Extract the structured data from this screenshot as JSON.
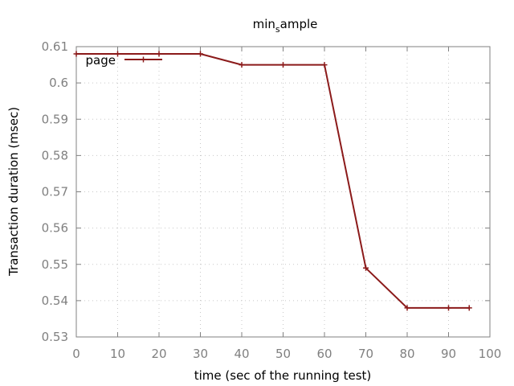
{
  "chart_data": {
    "type": "line",
    "title": "min",
    "title_subscript": "s",
    "title_rest": "ample",
    "xlabel": "time (sec of the running test)",
    "ylabel": "Transaction duration (msec)",
    "xlim": [
      0,
      100
    ],
    "ylim": [
      0.53,
      0.61
    ],
    "xticks": [
      0,
      10,
      20,
      30,
      40,
      50,
      60,
      70,
      80,
      90,
      100
    ],
    "yticks": [
      0.53,
      0.54,
      0.55,
      0.56,
      0.57,
      0.58,
      0.59,
      0.6,
      0.61
    ],
    "xtick_labels": [
      "0",
      "10",
      "20",
      "30",
      "40",
      "50",
      "60",
      "70",
      "80",
      "90",
      "100"
    ],
    "ytick_labels": [
      "0.53",
      "0.54",
      "0.55",
      "0.56",
      "0.57",
      "0.58",
      "0.59",
      "0.6",
      "0.61"
    ],
    "grid": true,
    "legend_position": "top-left",
    "series": [
      {
        "name": "page",
        "color": "#8b1a1a",
        "marker": "plus",
        "x": [
          0,
          10,
          20,
          30,
          40,
          50,
          60,
          70,
          80,
          90,
          95
        ],
        "y": [
          0.608,
          0.608,
          0.608,
          0.608,
          0.605,
          0.605,
          0.605,
          0.549,
          0.538,
          0.538,
          0.538
        ]
      }
    ]
  }
}
